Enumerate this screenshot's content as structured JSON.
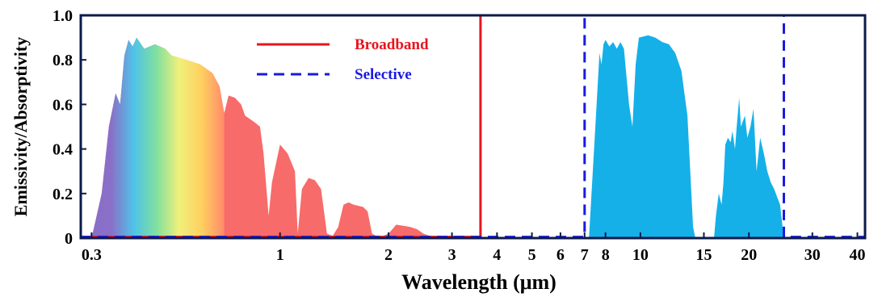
{
  "chart_data": {
    "type": "area",
    "xlabel": "Wavelength (μm)",
    "ylabel": "Emissivity/Absorptivity",
    "x_scale": "log",
    "xlim": [
      0.28,
      42
    ],
    "ylim": [
      0,
      1.0
    ],
    "x_ticks": [
      {
        "value": 0.3,
        "label": "0.3"
      },
      {
        "value": 1,
        "label": "1"
      },
      {
        "value": 2,
        "label": "2"
      },
      {
        "value": 3,
        "label": "3"
      },
      {
        "value": 4,
        "label": "4"
      },
      {
        "value": 5,
        "label": "5"
      },
      {
        "value": 6,
        "label": "6"
      },
      {
        "value": 7,
        "label": "7"
      },
      {
        "value": 8,
        "label": "8"
      },
      {
        "value": 10,
        "label": "10"
      },
      {
        "value": 15,
        "label": "15"
      },
      {
        "value": 20,
        "label": "20"
      },
      {
        "value": 30,
        "label": "30"
      },
      {
        "value": 40,
        "label": "40"
      }
    ],
    "y_ticks": [
      {
        "value": 0,
        "label": "0"
      },
      {
        "value": 0.2,
        "label": "0.2"
      },
      {
        "value": 0.4,
        "label": "0.4"
      },
      {
        "value": 0.6,
        "label": "0.6"
      },
      {
        "value": 0.8,
        "label": "0.8"
      },
      {
        "value": 1.0,
        "label": "1.0"
      }
    ],
    "legend": {
      "position": "top-left",
      "entries": [
        {
          "name": "Broadband",
          "color": "#e8141c",
          "style": "solid"
        },
        {
          "name": "Selective",
          "color": "#1a1ae0",
          "style": "dashed"
        }
      ]
    },
    "series": [
      {
        "name": "Broadband",
        "kind": "line",
        "color": "#e8141c",
        "style": "solid",
        "x": [
          0.28,
          3.6,
          3.6,
          42
        ],
        "y": [
          0.005,
          0.005,
          1.0,
          1.0
        ]
      },
      {
        "name": "Selective",
        "kind": "line",
        "color": "#1a1ae0",
        "style": "dashed",
        "x": [
          0.28,
          7.0,
          7.0,
          25.0,
          25.0,
          42
        ],
        "y": [
          0.005,
          0.005,
          1.0,
          1.0,
          0.005,
          0.005
        ]
      }
    ],
    "solar_spectrum": {
      "kind": "area",
      "visible_gradient": [
        "#8a6fc8",
        "#4fc3e8",
        "#7fe0a0",
        "#f0f07a",
        "#ffd060",
        "#ff8a6a"
      ],
      "color": "#f76b6b",
      "points": [
        [
          0.3,
          0.0
        ],
        [
          0.32,
          0.2
        ],
        [
          0.335,
          0.5
        ],
        [
          0.35,
          0.65
        ],
        [
          0.36,
          0.6
        ],
        [
          0.37,
          0.82
        ],
        [
          0.38,
          0.89
        ],
        [
          0.39,
          0.86
        ],
        [
          0.4,
          0.9
        ],
        [
          0.42,
          0.85
        ],
        [
          0.45,
          0.87
        ],
        [
          0.48,
          0.85
        ],
        [
          0.5,
          0.82
        ],
        [
          0.55,
          0.8
        ],
        [
          0.6,
          0.78
        ],
        [
          0.65,
          0.74
        ],
        [
          0.68,
          0.68
        ],
        [
          0.7,
          0.56
        ],
        [
          0.72,
          0.64
        ],
        [
          0.75,
          0.63
        ],
        [
          0.78,
          0.6
        ],
        [
          0.8,
          0.55
        ],
        [
          0.85,
          0.52
        ],
        [
          0.88,
          0.5
        ],
        [
          0.9,
          0.38
        ],
        [
          0.93,
          0.1
        ],
        [
          0.95,
          0.25
        ],
        [
          1.0,
          0.42
        ],
        [
          1.05,
          0.38
        ],
        [
          1.1,
          0.3
        ],
        [
          1.12,
          0.02
        ],
        [
          1.15,
          0.22
        ],
        [
          1.2,
          0.27
        ],
        [
          1.25,
          0.26
        ],
        [
          1.3,
          0.22
        ],
        [
          1.35,
          0.02
        ],
        [
          1.4,
          0.01
        ],
        [
          1.45,
          0.05
        ],
        [
          1.5,
          0.15
        ],
        [
          1.55,
          0.16
        ],
        [
          1.6,
          0.15
        ],
        [
          1.7,
          0.14
        ],
        [
          1.75,
          0.12
        ],
        [
          1.8,
          0.02
        ],
        [
          1.85,
          0.01
        ],
        [
          1.9,
          0.005
        ],
        [
          2.0,
          0.02
        ],
        [
          2.05,
          0.04
        ],
        [
          2.1,
          0.06
        ],
        [
          2.2,
          0.055
        ],
        [
          2.3,
          0.05
        ],
        [
          2.4,
          0.04
        ],
        [
          2.5,
          0.02
        ],
        [
          2.6,
          0.01
        ],
        [
          2.8,
          0.005
        ],
        [
          3.0,
          0.003
        ],
        [
          3.4,
          0.001
        ],
        [
          3.6,
          0.0
        ]
      ]
    },
    "atmospheric_window": {
      "kind": "area",
      "color": "#15b0e8",
      "points": [
        [
          7.2,
          0.0
        ],
        [
          7.5,
          0.5
        ],
        [
          7.7,
          0.83
        ],
        [
          7.8,
          0.78
        ],
        [
          7.9,
          0.87
        ],
        [
          8.0,
          0.89
        ],
        [
          8.2,
          0.86
        ],
        [
          8.4,
          0.88
        ],
        [
          8.6,
          0.85
        ],
        [
          8.8,
          0.88
        ],
        [
          9.0,
          0.85
        ],
        [
          9.3,
          0.6
        ],
        [
          9.5,
          0.5
        ],
        [
          9.7,
          0.78
        ],
        [
          9.9,
          0.9
        ],
        [
          10.5,
          0.91
        ],
        [
          11.0,
          0.9
        ],
        [
          11.5,
          0.88
        ],
        [
          12.0,
          0.87
        ],
        [
          12.5,
          0.83
        ],
        [
          13.0,
          0.75
        ],
        [
          13.5,
          0.55
        ],
        [
          14.0,
          0.05
        ],
        [
          14.2,
          0.0
        ]
      ],
      "points2": [
        [
          16.0,
          0.0
        ],
        [
          16.2,
          0.1
        ],
        [
          16.5,
          0.2
        ],
        [
          16.8,
          0.15
        ],
        [
          17.0,
          0.25
        ],
        [
          17.2,
          0.42
        ],
        [
          17.5,
          0.45
        ],
        [
          17.8,
          0.43
        ],
        [
          18.0,
          0.48
        ],
        [
          18.3,
          0.4
        ],
        [
          18.5,
          0.5
        ],
        [
          18.8,
          0.63
        ],
        [
          19.0,
          0.5
        ],
        [
          19.5,
          0.55
        ],
        [
          19.8,
          0.45
        ],
        [
          20.2,
          0.5
        ],
        [
          20.6,
          0.58
        ],
        [
          21.0,
          0.3
        ],
        [
          21.5,
          0.45
        ],
        [
          22.0,
          0.38
        ],
        [
          22.5,
          0.3
        ],
        [
          23.0,
          0.25
        ],
        [
          23.5,
          0.22
        ],
        [
          24.0,
          0.18
        ],
        [
          24.4,
          0.15
        ],
        [
          24.8,
          0.05
        ],
        [
          25.0,
          0.0
        ]
      ]
    }
  }
}
